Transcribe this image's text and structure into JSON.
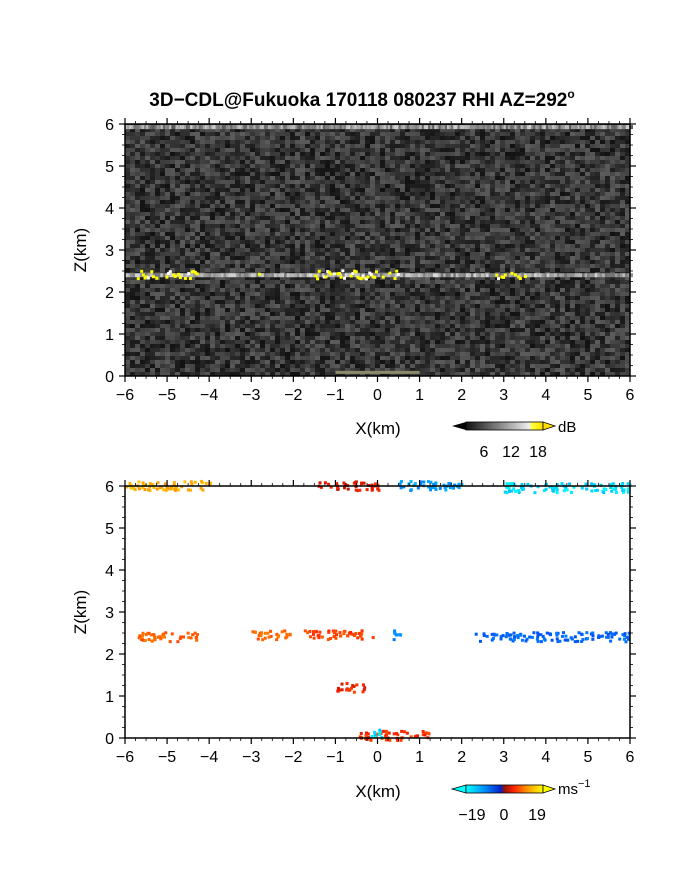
{
  "title_prefix": "3D−CDL@Fukuoka 170118 080237 RHI AZ=292",
  "title_sup": "o",
  "chart_data": [
    {
      "type": "heatmap",
      "quantity": "reflectivity",
      "xlabel": "X(km)",
      "ylabel": "Z(km)",
      "xlim": [
        -6,
        6
      ],
      "ylim": [
        0,
        6
      ],
      "xticks": [
        "−6",
        "−5",
        "−4",
        "−3",
        "−2",
        "−1",
        "0",
        "1",
        "2",
        "3",
        "4",
        "5",
        "6"
      ],
      "yticks": [
        "0",
        "1",
        "2",
        "3",
        "4",
        "5",
        "6"
      ],
      "background": "dark gray noise",
      "colorbar": {
        "unit": "dB",
        "ticks": [
          "6",
          "12",
          "18"
        ],
        "range": [
          0,
          21
        ]
      },
      "features": [
        {
          "name": "layer",
          "z": 2.4,
          "x_range": [
            -6,
            6
          ],
          "strong_segments": [
            [
              -5.8,
              -4.3
            ],
            [
              -3.0,
              -2.8
            ],
            [
              -1.5,
              0.5
            ],
            [
              2.8,
              3.6
            ]
          ]
        },
        {
          "name": "top",
          "z": 5.95,
          "x_range": [
            -6,
            6
          ]
        },
        {
          "name": "ground",
          "z": 0.05,
          "x_range": [
            -1.0,
            1.0
          ]
        }
      ]
    },
    {
      "type": "scatter",
      "quantity": "doppler velocity",
      "xlabel": "X(km)",
      "ylabel": "Z(km)",
      "xlim": [
        -6,
        6
      ],
      "ylim": [
        0,
        6
      ],
      "xticks": [
        "−6",
        "−5",
        "−4",
        "−3",
        "−2",
        "−1",
        "0",
        "1",
        "2",
        "3",
        "4",
        "5",
        "6"
      ],
      "yticks": [
        "0",
        "1",
        "2",
        "3",
        "4",
        "5",
        "6"
      ],
      "colorbar": {
        "unit": "ms",
        "unit_sup": "−1",
        "ticks": [
          "−19",
          "0",
          "19"
        ],
        "range": [
          -19,
          19
        ]
      },
      "points_summary": [
        {
          "x_range": [
            -5.8,
            -4.3
          ],
          "z": 2.4,
          "velocity": 8
        },
        {
          "x_range": [
            -3.0,
            -2.0
          ],
          "z": 2.45,
          "velocity": 8
        },
        {
          "x_range": [
            -1.8,
            -0.1
          ],
          "z": 2.45,
          "velocity": 6
        },
        {
          "x_range": [
            0.3,
            0.6
          ],
          "z": 2.45,
          "velocity": -12
        },
        {
          "x_range": [
            2.3,
            6.0
          ],
          "z": 2.4,
          "velocity": -9
        },
        {
          "x_range": [
            -6.0,
            -4.0
          ],
          "z": 6.0,
          "velocity": 14
        },
        {
          "x_range": [
            -1.5,
            0.0
          ],
          "z": 6.0,
          "velocity": 3
        },
        {
          "x_range": [
            0.5,
            2.0
          ],
          "z": 6.0,
          "velocity": -13
        },
        {
          "x_range": [
            3.0,
            6.0
          ],
          "z": 5.95,
          "velocity": -17
        },
        {
          "x_range": [
            -1.0,
            -0.3
          ],
          "z": 1.2,
          "velocity": 4
        },
        {
          "x_range": [
            -0.5,
            1.2
          ],
          "z": 0.05,
          "velocity": 5
        },
        {
          "x_range": [
            -0.2,
            0.1
          ],
          "z": 0.1,
          "velocity": -17
        }
      ]
    }
  ]
}
